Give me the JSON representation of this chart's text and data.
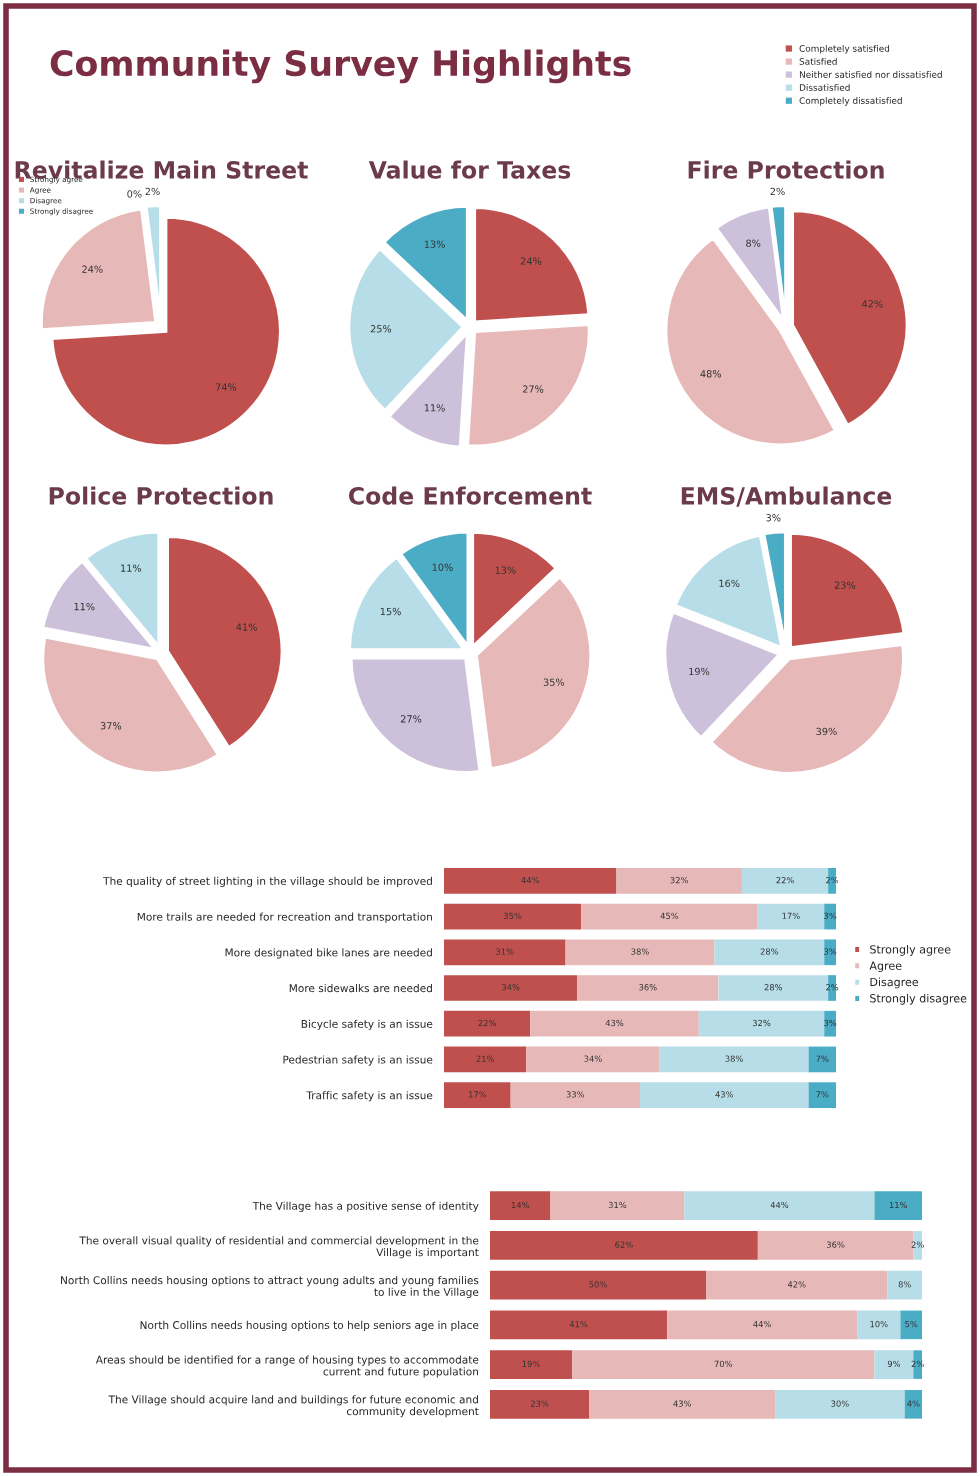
{
  "chart_data": [
    {
      "type": "pie",
      "title": "Revitalize Main Street",
      "annotations": [
        "Community Survey Highlights"
      ],
      "categories": [
        "Strongly agree",
        "Agree",
        "Disagree",
        "Strongly disagree"
      ],
      "values": [
        74,
        24,
        2,
        0
      ],
      "value_labels": [
        "74%",
        "24%",
        "2%",
        "0%"
      ],
      "colors": [
        "#c0504d",
        "#e6b9b8",
        "#b7dee8",
        "#4bacc6"
      ],
      "legend": "top left"
    },
    {
      "type": "pie",
      "title": "Value for Taxes",
      "categories": [
        "Completely satisfied",
        "Satisfied",
        "Neither satisfied nor dissatisfied",
        "Dissatisfied",
        "Completely dissatisfied"
      ],
      "values": [
        24,
        27,
        11,
        25,
        13
      ],
      "value_labels": [
        "24%",
        "27%",
        "11%",
        "25%",
        "13%"
      ],
      "colors": [
        "#c0504d",
        "#e6b9b8",
        "#ccc0da",
        "#b7dee8",
        "#4bacc6"
      ],
      "legend": "top right"
    },
    {
      "type": "pie",
      "title": "Fire Protection",
      "categories": [
        null,
        null,
        null,
        null,
        null
      ],
      "values": [
        42,
        48,
        8,
        0,
        2
      ],
      "value_labels": [
        "42%",
        "48%",
        "8%",
        null,
        "2%"
      ],
      "colors": [
        "#c0504d",
        "#e6b9b8",
        "#ccc0da",
        "#b7dee8",
        "#4bacc6"
      ]
    },
    {
      "type": "pie",
      "title": "Police Protection",
      "categories": [
        null,
        null,
        null,
        null,
        null
      ],
      "values": [
        41,
        37,
        11,
        11,
        0
      ],
      "value_labels": [
        "41%",
        "37%",
        "11%",
        "11%",
        null
      ],
      "colors": [
        "#c0504d",
        "#e6b9b8",
        "#ccc0da",
        "#b7dee8",
        "#4bacc6"
      ]
    },
    {
      "type": "pie",
      "title": "Code Enforcement",
      "categories": [
        null,
        null,
        null,
        null,
        null
      ],
      "values": [
        13,
        35,
        27,
        15,
        10
      ],
      "value_labels": [
        "13%",
        "35%",
        "27%",
        "15%",
        "10%"
      ],
      "colors": [
        "#c0504d",
        "#e6b9b8",
        "#ccc0da",
        "#b7dee8",
        "#4bacc6"
      ]
    },
    {
      "type": "pie",
      "title": "EMS/Ambulance",
      "categories": [
        null,
        null,
        null,
        null,
        null
      ],
      "values": [
        23,
        39,
        19,
        16,
        3
      ],
      "value_labels": [
        "23%",
        "39%",
        "19%",
        "16%",
        "3%"
      ],
      "colors": [
        "#c0504d",
        "#e6b9b8",
        "#ccc0da",
        "#b7dee8",
        "#4bacc6"
      ]
    },
    {
      "type": "bar",
      "orientation": "horizontal",
      "stacked": true,
      "legend": "right",
      "categories": [
        "The quality of street lighting in the village should be improved",
        "More trails are needed for recreation and transportation",
        "More designated bike lanes are needed",
        "More sidewalks are needed",
        "Bicycle safety is an issue",
        "Pedestrian safety is an issue",
        "Traffic safety is an issue"
      ],
      "series": [
        {
          "name": "Strongly agree",
          "color": "#c0504d",
          "values": [
            44,
            35,
            31,
            34,
            22,
            21,
            17
          ],
          "value_labels": [
            "44%",
            "35%",
            "31%",
            "34%",
            "22%",
            "21%",
            "17%"
          ]
        },
        {
          "name": "Agree",
          "color": "#e6b9b8",
          "values": [
            32,
            45,
            38,
            36,
            43,
            34,
            33
          ],
          "value_labels": [
            "32%",
            "45%",
            "38%",
            "36%",
            "43%",
            "34%",
            "33%"
          ]
        },
        {
          "name": "Disagree",
          "color": "#b7dee8",
          "values": [
            22,
            17,
            28,
            28,
            32,
            38,
            43
          ],
          "value_labels": [
            "22%",
            "17%",
            "28%",
            "28%",
            "32%",
            "38%",
            "43%"
          ]
        },
        {
          "name": "Strongly disagree",
          "color": "#4bacc6",
          "values": [
            2,
            3,
            3,
            2,
            3,
            7,
            7
          ],
          "value_labels": [
            "2%",
            "3%",
            "3%",
            "2%",
            "3%",
            "7%",
            "7%"
          ]
        }
      ]
    },
    {
      "type": "bar",
      "orientation": "horizontal",
      "stacked": true,
      "categories": [
        "The Village has a positive sense of identity",
        "The overall visual quality of residential and commercial development in the\nVillage is important",
        "North Collins needs housing options to attract young adults and young families\nto live in the Village",
        "North Collins needs housing options to help seniors age in place",
        "Areas should be identified for a range of housing types to accommodate\ncurrent and future population",
        "The Village should acquire land and buildings for future economic and\ncommunity development"
      ],
      "series": [
        {
          "color": "#c0504d",
          "values": [
            14,
            62,
            50,
            41,
            19,
            23
          ],
          "value_labels": [
            "14%",
            "62%",
            "50%",
            "41%",
            "19%",
            "23%"
          ]
        },
        {
          "color": "#e6b9b8",
          "values": [
            31,
            36,
            42,
            44,
            70,
            43
          ],
          "value_labels": [
            "31%",
            "36%",
            "42%",
            "44%",
            "70%",
            "43%"
          ]
        },
        {
          "color": "#b7dee8",
          "values": [
            44,
            2,
            8,
            10,
            9,
            30
          ],
          "value_labels": [
            "44%",
            "2%",
            "8%",
            "10%",
            "9%",
            "30%"
          ]
        },
        {
          "color": "#4bacc6",
          "values": [
            11,
            null,
            null,
            5,
            2,
            4
          ],
          "value_labels": [
            "11%",
            null,
            null,
            "5%",
            "2%",
            "4%"
          ]
        }
      ]
    }
  ]
}
